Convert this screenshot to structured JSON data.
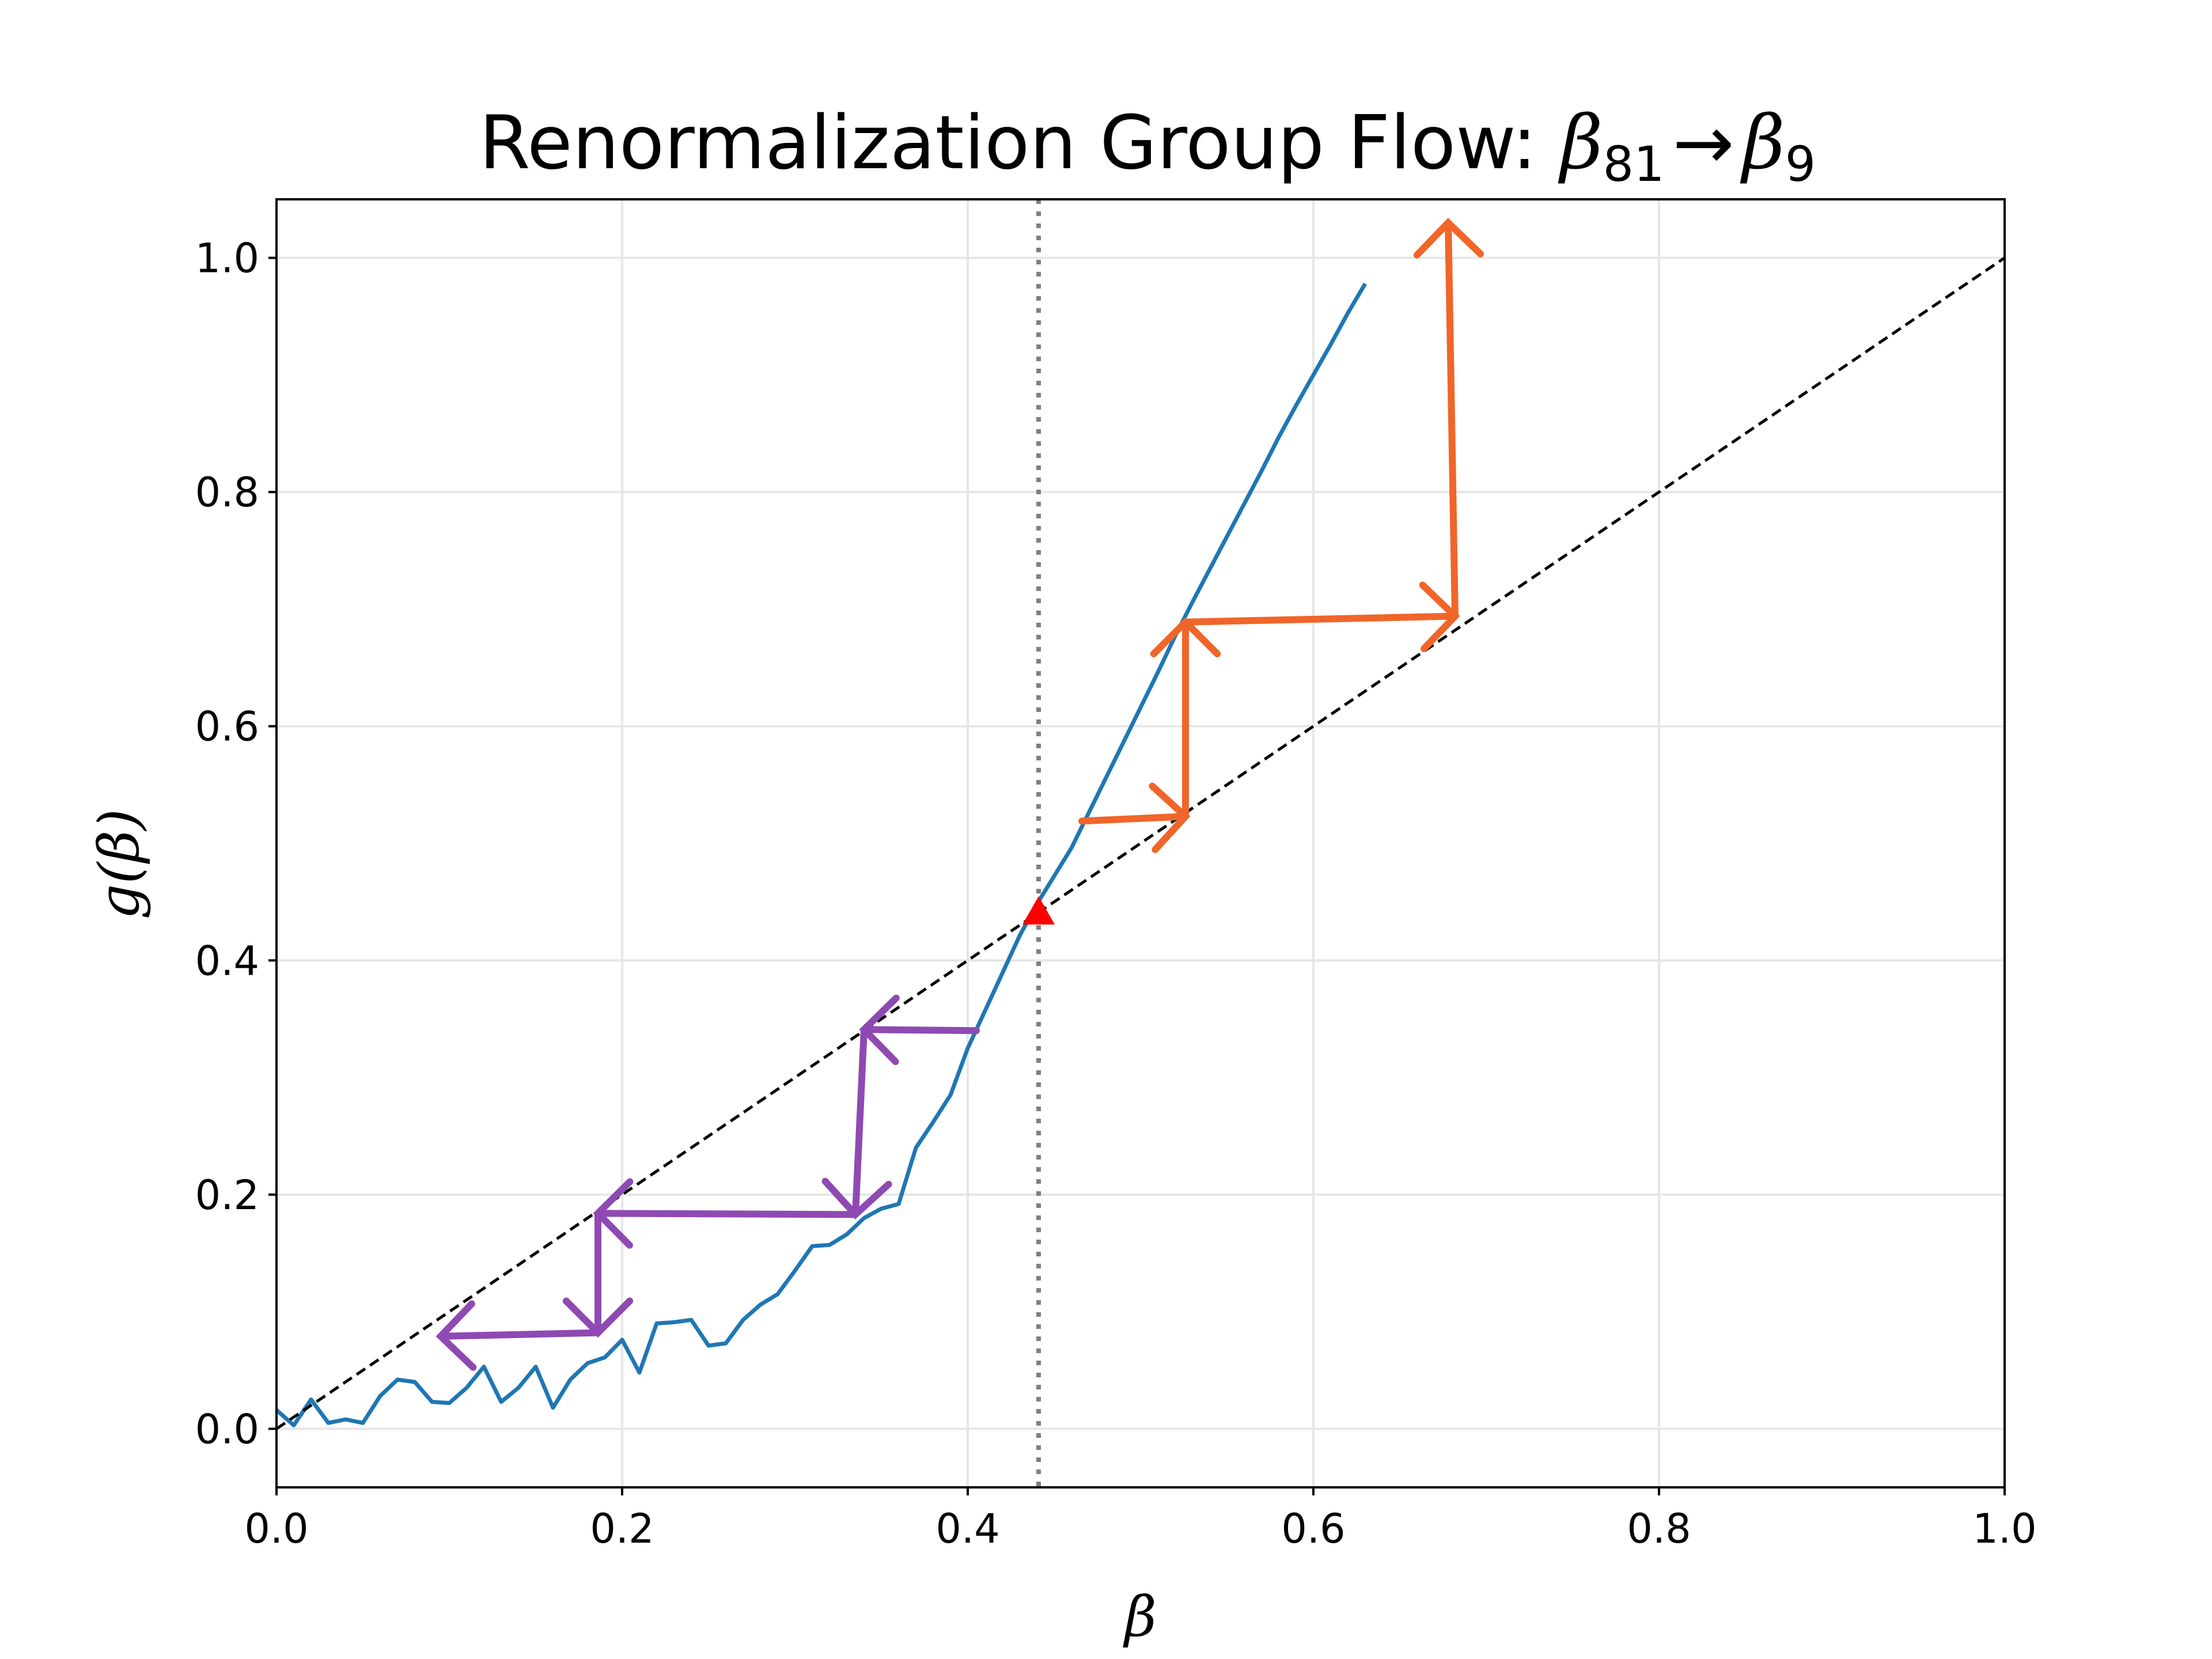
{
  "chart_data": {
    "type": "line",
    "title": "Renormalization Group Flow: β81 → β9",
    "title_parts": {
      "prefix": "Renormalization Group Flow: ",
      "sym_a": "β",
      "sub_a": "81",
      "arrow": "→",
      "sym_b": "β",
      "sub_b": "9"
    },
    "xlabel": "β",
    "ylabel": "g(β)",
    "xlim": [
      0.0,
      1.0
    ],
    "ylim": [
      -0.05,
      1.05
    ],
    "xticks": [
      0.0,
      0.2,
      0.4,
      0.6,
      0.8,
      1.0
    ],
    "xtick_labels": [
      "0.0",
      "0.2",
      "0.4",
      "0.6",
      "0.8",
      "1.0"
    ],
    "yticks": [
      0.0,
      0.2,
      0.4,
      0.6,
      0.8,
      1.0
    ],
    "ytick_labels": [
      "0.0",
      "0.2",
      "0.4",
      "0.6",
      "0.8",
      "1.0"
    ],
    "grid": true,
    "series": [
      {
        "kind": "rg-map-curve",
        "color": "#1f77b4",
        "x": [
          0.0,
          0.01,
          0.02,
          0.03,
          0.04,
          0.05,
          0.06,
          0.07,
          0.08,
          0.09,
          0.1,
          0.11,
          0.12,
          0.13,
          0.14,
          0.15,
          0.16,
          0.17,
          0.18,
          0.19,
          0.2,
          0.21,
          0.22,
          0.23,
          0.24,
          0.25,
          0.26,
          0.27,
          0.28,
          0.29,
          0.3,
          0.31,
          0.32,
          0.33,
          0.34,
          0.35,
          0.36,
          0.37,
          0.38,
          0.39,
          0.4,
          0.41,
          0.42,
          0.43,
          0.44,
          0.45,
          0.46,
          0.47,
          0.48,
          0.49,
          0.5,
          0.51,
          0.52,
          0.53,
          0.54,
          0.55,
          0.56,
          0.57,
          0.58,
          0.59,
          0.6,
          0.61,
          0.62,
          0.63
        ],
        "y": [
          0.016,
          0.003,
          0.025,
          0.005,
          0.008,
          0.005,
          0.028,
          0.042,
          0.04,
          0.023,
          0.022,
          0.035,
          0.053,
          0.023,
          0.035,
          0.053,
          0.018,
          0.042,
          0.056,
          0.061,
          0.076,
          0.048,
          0.09,
          0.091,
          0.093,
          0.071,
          0.073,
          0.093,
          0.106,
          0.115,
          0.135,
          0.156,
          0.157,
          0.166,
          0.18,
          0.188,
          0.192,
          0.24,
          0.262,
          0.285,
          0.325,
          0.357,
          0.389,
          0.421,
          0.448,
          0.472,
          0.496,
          0.526,
          0.556,
          0.586,
          0.616,
          0.646,
          0.677,
          0.706,
          0.734,
          0.762,
          0.79,
          0.818,
          0.847,
          0.874,
          0.9,
          0.926,
          0.953,
          0.978
        ]
      },
      {
        "kind": "identity-line",
        "color": "#000000",
        "style": "dashed",
        "x": [
          0.0,
          1.0
        ],
        "y": [
          0.0,
          1.0
        ]
      }
    ],
    "critical_point": {
      "x": 0.441,
      "y": 0.441,
      "marker": "triangle",
      "color": "#ff0000"
    },
    "critical_line": {
      "x": 0.441,
      "color": "#808080",
      "style": "dotted"
    },
    "flow_arrows": [
      {
        "group": "high",
        "color": "#f0652a",
        "from": [
          0.466,
          0.519
        ],
        "to": [
          0.526,
          0.523
        ]
      },
      {
        "group": "high",
        "color": "#f0652a",
        "from": [
          0.526,
          0.523
        ],
        "to": [
          0.526,
          0.689
        ]
      },
      {
        "group": "high",
        "color": "#f0652a",
        "from": [
          0.526,
          0.689
        ],
        "to": [
          0.682,
          0.694
        ]
      },
      {
        "group": "high",
        "color": "#f0652a",
        "from": [
          0.682,
          0.694
        ],
        "to": [
          0.678,
          1.03
        ]
      },
      {
        "group": "low",
        "color": "#8e4ab2",
        "from": [
          0.405,
          0.34
        ],
        "to": [
          0.34,
          0.341
        ]
      },
      {
        "group": "low",
        "color": "#8e4ab2",
        "from": [
          0.34,
          0.341
        ],
        "to": [
          0.335,
          0.183
        ]
      },
      {
        "group": "low",
        "color": "#8e4ab2",
        "from": [
          0.335,
          0.183
        ],
        "to": [
          0.186,
          0.184
        ]
      },
      {
        "group": "low",
        "color": "#8e4ab2",
        "from": [
          0.186,
          0.184
        ],
        "to": [
          0.186,
          0.082
        ]
      },
      {
        "group": "low",
        "color": "#8e4ab2",
        "from": [
          0.186,
          0.082
        ],
        "to": [
          0.095,
          0.079
        ]
      }
    ]
  }
}
